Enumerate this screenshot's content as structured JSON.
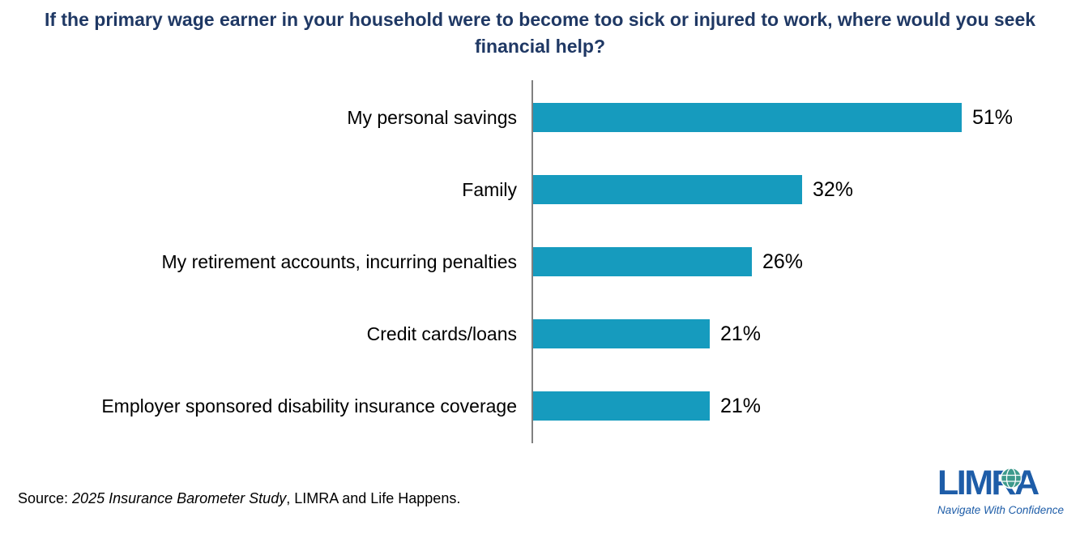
{
  "title": "If the primary wage earner in your household were to become too sick or injured to work, where would you seek financial help?",
  "chart_data": {
    "type": "bar",
    "orientation": "horizontal",
    "categories": [
      "My personal savings",
      "Family",
      "My retirement accounts, incurring penalties",
      "Credit cards/loans",
      "Employer sponsored disability insurance coverage"
    ],
    "values": [
      51,
      32,
      26,
      21,
      21
    ],
    "value_labels": [
      "51%",
      "32%",
      "26%",
      "21%",
      "21%"
    ],
    "value_label_position": "end-of-bar",
    "bar_color": "#169BBE",
    "axis_color": "#808080",
    "gridlines": false,
    "x_axis_ticks_visible": false
  },
  "source": {
    "prefix": "Source: ",
    "study": "2025 Insurance Barometer Study",
    "rest": ", LIMRA and Life Happens."
  },
  "logo": {
    "name": "LIMRA",
    "tagline": "Navigate With Confidence",
    "brand_color": "#1E5DA8",
    "globe_color": "#3D9A8C"
  }
}
